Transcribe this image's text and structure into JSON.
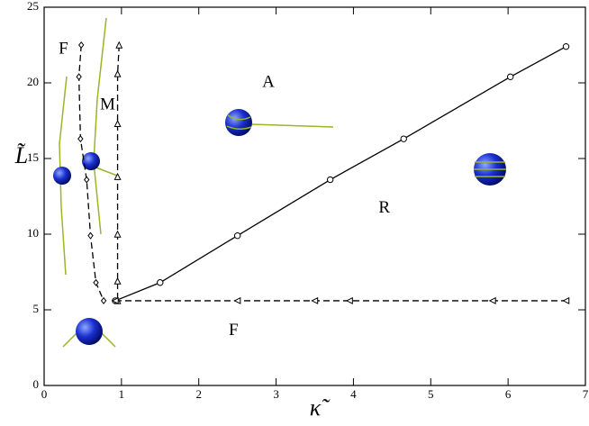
{
  "chart_data": {
    "type": "line",
    "xlabel": "κ̃",
    "ylabel": "L̃",
    "xlim": [
      0,
      7
    ],
    "ylim": [
      0,
      25
    ],
    "xticks": [
      0,
      1,
      2,
      3,
      4,
      5,
      6,
      7
    ],
    "yticks": [
      0,
      5,
      10,
      15,
      20,
      25
    ],
    "series": [
      {
        "color": "#000000",
        "marker": "circle",
        "dashed": false,
        "x": [
          0.92,
          1.5,
          2.5,
          3.7,
          4.65,
          6.03,
          6.75
        ],
        "values": [
          5.6,
          6.8,
          9.9,
          13.6,
          16.3,
          20.4,
          22.4
        ]
      },
      {
        "color": "#000000",
        "marker": "diamond",
        "dashed": true,
        "x": [
          0.48,
          0.45,
          0.47,
          0.55,
          0.6,
          0.67,
          0.77
        ],
        "values": [
          22.5,
          20.4,
          16.3,
          13.6,
          9.9,
          6.8,
          5.6
        ]
      },
      {
        "color": "#000000",
        "marker": "triangle-up",
        "dashed": true,
        "x": [
          0.97,
          0.95,
          0.95,
          0.95,
          0.95,
          0.95,
          0.95
        ],
        "values": [
          22.5,
          20.6,
          17.3,
          13.8,
          10,
          6.9,
          5.6
        ]
      },
      {
        "color": "#000000",
        "marker": "triangle-left",
        "dashed": true,
        "x": [
          0.92,
          2.5,
          3.5,
          3.95,
          5.8,
          6.75
        ],
        "values": [
          5.6,
          5.6,
          5.6,
          5.6,
          5.6,
          5.6
        ]
      }
    ],
    "annotations": [
      "F",
      "M",
      "A",
      "R",
      "F"
    ]
  }
}
